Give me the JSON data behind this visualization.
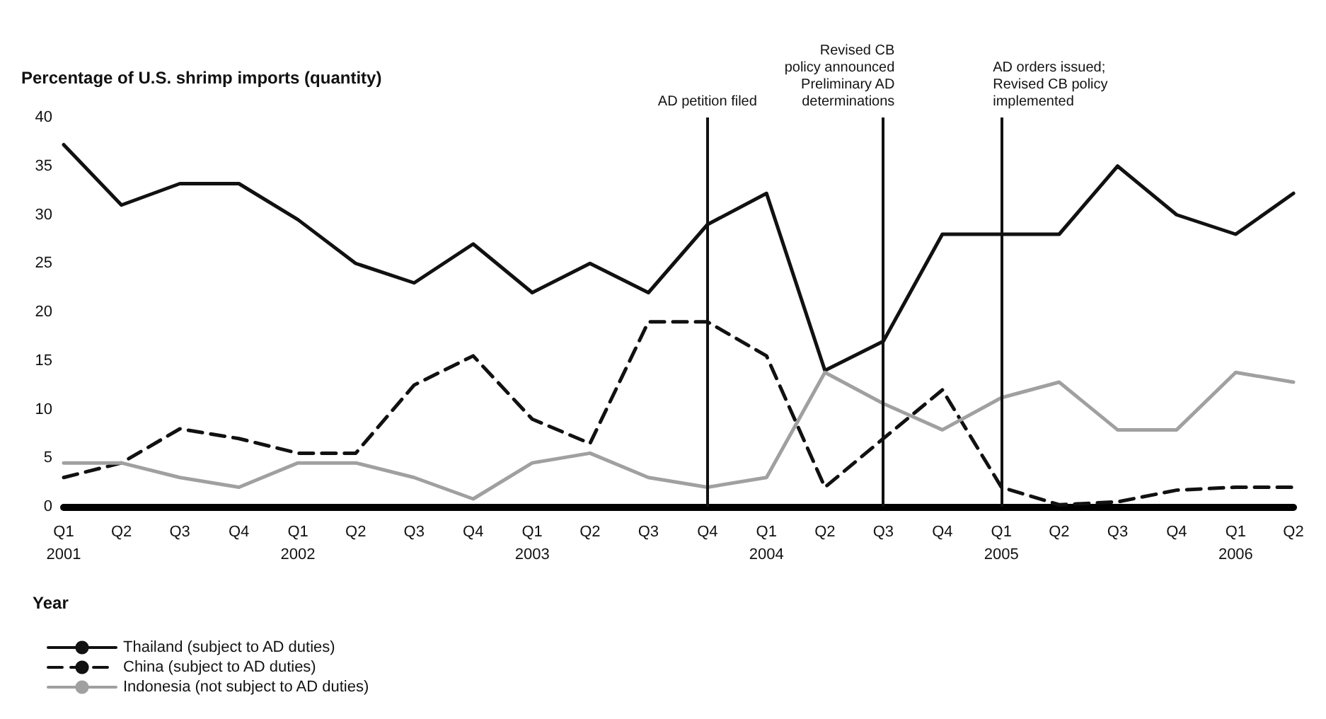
{
  "chart_data": {
    "type": "line",
    "ylabel": "Percentage of U.S. shrimp imports (quantity)",
    "xlabel": "Year",
    "x": [
      "2001-01",
      "2001-04",
      "2001-07",
      "2001-10",
      "2002-01",
      "2002-04",
      "2002-07",
      "2002-10",
      "2003-01",
      "2003-04",
      "2003-07",
      "2003-10",
      "2004-01",
      "2004-04",
      "2004-07",
      "2004-10",
      "2005-01",
      "2005-04",
      "2005-07",
      "2005-10",
      "2006-01",
      "2006-04"
    ],
    "xlim": [
      "2001-01",
      "2006-04"
    ],
    "xticks": [
      {
        "value": "2001-01",
        "label": "Q1\n2001"
      },
      {
        "value": "2001-04",
        "label": "Q2"
      },
      {
        "value": "2001-07",
        "label": "Q3"
      },
      {
        "value": "2001-10",
        "label": "Q4"
      },
      {
        "value": "2002-01",
        "label": "Q1\n2002"
      },
      {
        "value": "2002-04",
        "label": "Q2"
      },
      {
        "value": "2002-07",
        "label": "Q3"
      },
      {
        "value": "2002-10",
        "label": "Q4"
      },
      {
        "value": "2003-01",
        "label": "Q1\n2003"
      },
      {
        "value": "2003-04",
        "label": "Q2"
      },
      {
        "value": "2003-07",
        "label": "Q3"
      },
      {
        "value": "2003-10",
        "label": "Q4"
      },
      {
        "value": "2004-01",
        "label": "Q1\n2004"
      },
      {
        "value": "2004-04",
        "label": "Q2"
      },
      {
        "value": "2004-07",
        "label": "Q3"
      },
      {
        "value": "2004-10",
        "label": "Q4"
      },
      {
        "value": "2005-01",
        "label": "Q1\n2005"
      },
      {
        "value": "2005-04",
        "label": "Q2"
      },
      {
        "value": "2005-07",
        "label": "Q3"
      },
      {
        "value": "2005-10",
        "label": "Q4"
      },
      {
        "value": "2006-01",
        "label": "Q1\n2006"
      },
      {
        "value": "2006-04",
        "label": "Q2"
      }
    ],
    "series": [
      {
        "name": "Thailand (subject to AD duties)",
        "color": "#111111",
        "line_style": "solid",
        "values": [
          37.2,
          31,
          33.2,
          33.2,
          29.5,
          25,
          23,
          27,
          22,
          25,
          22,
          29,
          32.2,
          14,
          17,
          28,
          28,
          28,
          35,
          30,
          28,
          32.2
        ]
      },
      {
        "name": "China (subject to AD duties)",
        "color": "#111111",
        "line_style": "dashed",
        "values": [
          3,
          4.5,
          8,
          7,
          5.5,
          5.5,
          12.5,
          15.5,
          9,
          6.5,
          19,
          19,
          15.5,
          2,
          7,
          12,
          2,
          0.2,
          0.5,
          1.7,
          2,
          2
        ]
      },
      {
        "name": "Indonesia (not subject to AD duties)",
        "color": "#a0a0a0",
        "line_style": "solid",
        "values": [
          4.5,
          4.5,
          3,
          2,
          4.5,
          4.5,
          3,
          0.8,
          4.5,
          5.5,
          3,
          2,
          3,
          13.8,
          10.6,
          7.9,
          11.2,
          12.8,
          7.9,
          7.9,
          13.8,
          12.8
        ]
      }
    ],
    "ylim": [
      0,
      40
    ],
    "yticks": [
      0,
      5,
      10,
      15,
      20,
      25,
      30,
      35,
      40
    ],
    "grid": false,
    "legend": "bottom left",
    "marker": "none",
    "ref_lines": [
      {
        "axis": "x",
        "value": "2003-10",
        "label": "AD petition filed"
      },
      {
        "axis": "x",
        "value": "2004-07",
        "label": "Revised CB\npolicy announced\nPreliminary AD\ndeterminations"
      },
      {
        "axis": "x",
        "value": "2005-01",
        "label": "AD orders issued;\nRevised CB policy\nimplemented"
      }
    ]
  }
}
